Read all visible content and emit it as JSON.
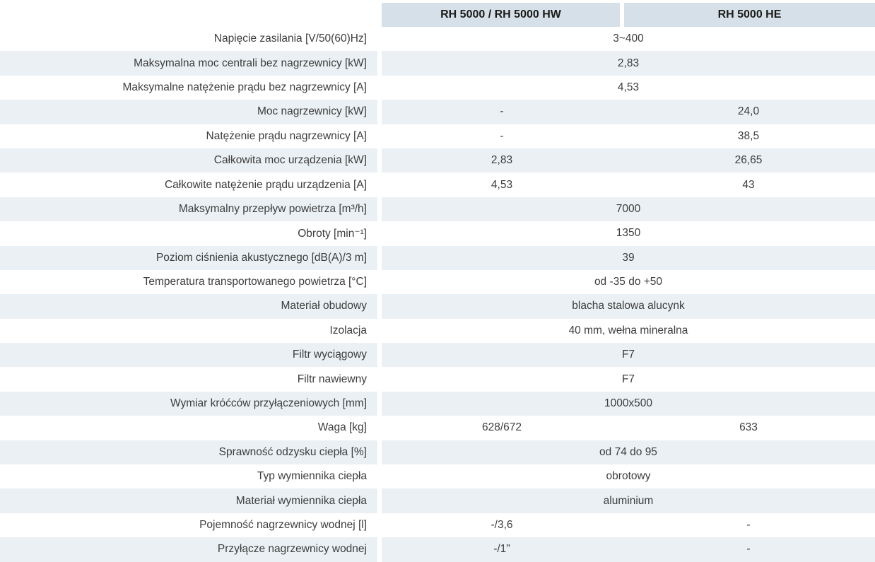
{
  "table": {
    "column_headers": [
      "RH 5000 / RH 5000 HW",
      "RH 5000 HE"
    ],
    "rows": [
      {
        "label": "Napięcie zasilania [V/50(60)Hz]",
        "merged": "3~400"
      },
      {
        "label": "Maksymalna moc centrali bez nagrzewnicy [kW]",
        "merged": "2,83"
      },
      {
        "label": "Maksymalne natężenie prądu bez nagrzewnicy [A]",
        "merged": "4,53"
      },
      {
        "label": "Moc nagrzewnicy [kW]",
        "col1": "-",
        "col2": "24,0"
      },
      {
        "label": "Natężenie prądu nagrzewnicy [A]",
        "col1": "-",
        "col2": "38,5"
      },
      {
        "label": "Całkowita moc urządzenia [kW]",
        "col1": "2,83",
        "col2": "26,65"
      },
      {
        "label": "Całkowite natężenie prądu urządzenia [A]",
        "col1": "4,53",
        "col2": "43"
      },
      {
        "label": "Maksymalny przepływ powietrza [m³/h]",
        "merged": "7000"
      },
      {
        "label": "Obroty [min⁻¹]",
        "merged": "1350"
      },
      {
        "label": "Poziom ciśnienia akustycznego  [dB(A)/3 m]",
        "merged": "39"
      },
      {
        "label": "Temperatura transportowanego powietrza [°C]",
        "merged": "od -35 do +50"
      },
      {
        "label": "Materiał obudowy",
        "merged": "blacha stalowa alucynk"
      },
      {
        "label": "Izolacja",
        "merged": "40 mm, wełna mineralna"
      },
      {
        "label": "Filtr wyciągowy",
        "merged": "F7"
      },
      {
        "label": "Filtr nawiewny",
        "merged": "F7"
      },
      {
        "label": "Wymiar króćców przyłączeniowych [mm]",
        "merged": "1000x500"
      },
      {
        "label": "Waga [kg]",
        "col1": "628/672",
        "col2": "633"
      },
      {
        "label": "Sprawność odzysku ciepła [%]",
        "merged": "od 74 do 95"
      },
      {
        "label": "Typ wymiennika ciepła",
        "merged": "obrotowy"
      },
      {
        "label": "Materiał wymiennika ciepła",
        "merged": "aluminium"
      },
      {
        "label": "Pojemność nagrzewnicy wodnej [l]",
        "col1": "-/3,6",
        "col2": "-"
      },
      {
        "label": "Przyłącze nagrzewnicy wodnej",
        "col1": "-/1\"",
        "col2": "-"
      }
    ],
    "colors": {
      "header_bg": "#d6e0e8",
      "stripe_bg": "#eaf0f4",
      "text": "#3d3d3c",
      "header_text": "#1c1c1a"
    }
  }
}
